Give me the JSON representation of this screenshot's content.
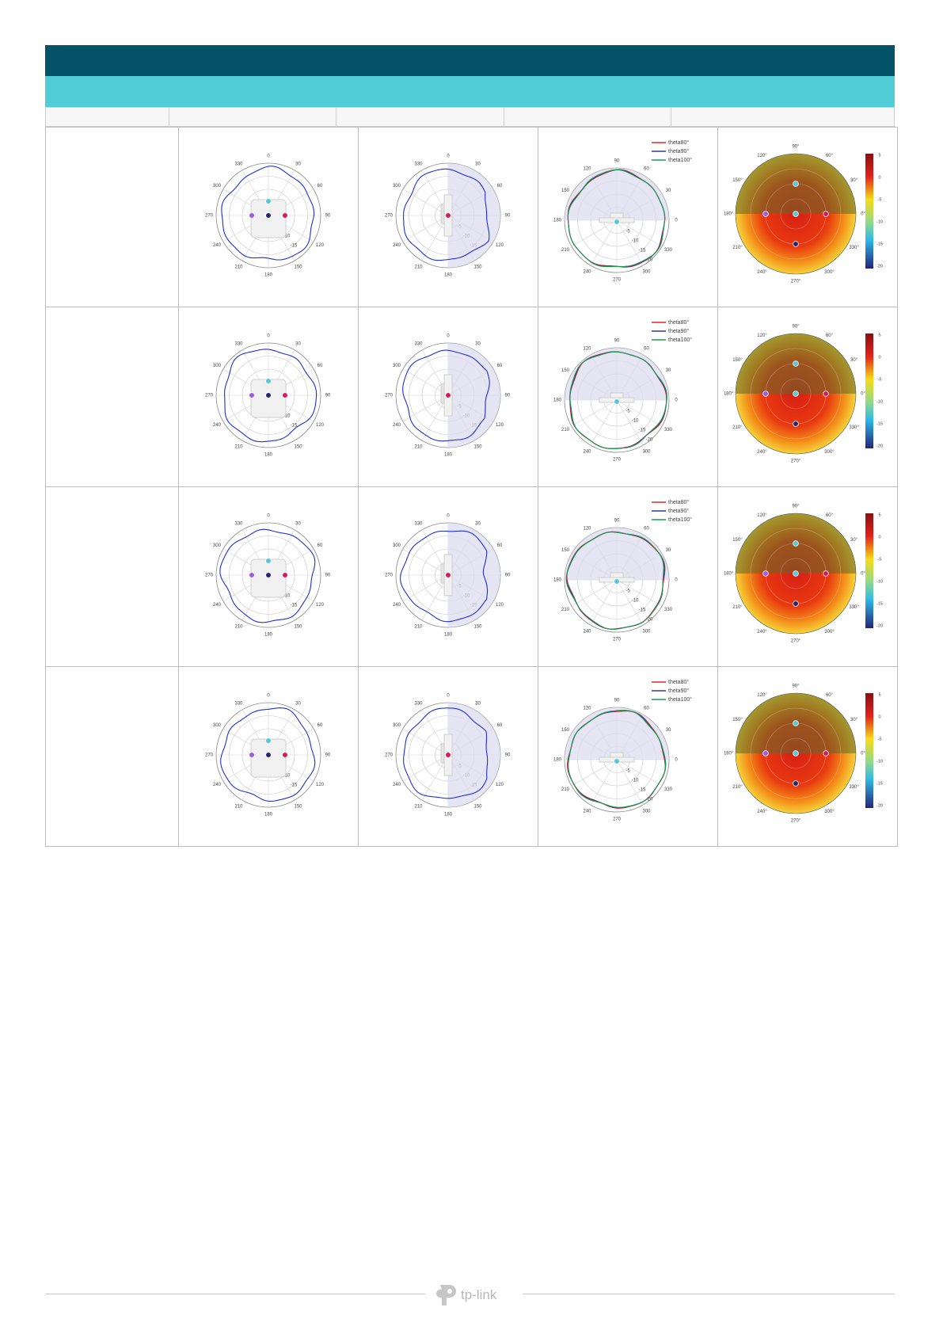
{
  "brand": {
    "logo_text": "tp-link"
  },
  "column_headers": [
    "",
    "",
    "",
    "",
    ""
  ],
  "rows": [
    {
      "azimuth": {
        "angle_labels": [
          "0",
          "30",
          "60",
          "90",
          "120",
          "150",
          "180",
          "210",
          "240",
          "270",
          "300",
          "330"
        ],
        "ring_labels": [
          "-5",
          "-10",
          "-15"
        ]
      },
      "elevation": {
        "angle_labels": [
          "0",
          "30",
          "60",
          "90",
          "120",
          "150",
          "180",
          "210",
          "240",
          "270",
          "300",
          "330"
        ],
        "ring_labels": [
          "-5",
          "-10",
          "-15"
        ]
      },
      "theta": {
        "angle_labels": [
          "90",
          "60",
          "30",
          "0",
          "330",
          "300",
          "270",
          "240",
          "210",
          "180",
          "150",
          "120"
        ],
        "ring_labels": [
          "-5",
          "-10",
          "-15",
          "-20"
        ],
        "legend": [
          "theta80°",
          "theta90°",
          "theta100°"
        ]
      },
      "heatmap": {
        "angle_labels": [
          "90°",
          "60°",
          "30°",
          "0°",
          "330°",
          "300°",
          "270°",
          "240°",
          "210°",
          "180°",
          "150°",
          "120°"
        ],
        "colorbar_ticks": [
          "5",
          "0",
          "-5",
          "-10",
          "-15",
          "-20"
        ]
      }
    },
    {
      "azimuth": {
        "angle_labels": [
          "0",
          "30",
          "60",
          "90",
          "120",
          "150",
          "180",
          "210",
          "240",
          "270",
          "300",
          "330"
        ],
        "ring_labels": [
          "-5",
          "-10",
          "-15"
        ]
      },
      "elevation": {
        "angle_labels": [
          "0",
          "30",
          "60",
          "90",
          "120",
          "150",
          "180",
          "210",
          "240",
          "270",
          "300",
          "330"
        ],
        "ring_labels": [
          "-5",
          "-10",
          "-15"
        ]
      },
      "theta": {
        "angle_labels": [
          "90",
          "60",
          "30",
          "0",
          "330",
          "300",
          "270",
          "240",
          "210",
          "180",
          "150",
          "120"
        ],
        "ring_labels": [
          "-5",
          "-10",
          "-15",
          "-20"
        ],
        "legend": [
          "theta80°",
          "theta90°",
          "theta100°"
        ]
      },
      "heatmap": {
        "angle_labels": [
          "90°",
          "60°",
          "30°",
          "0°",
          "330°",
          "300°",
          "270°",
          "240°",
          "210°",
          "180°",
          "150°",
          "120°"
        ],
        "colorbar_ticks": [
          "5",
          "0",
          "-5",
          "-10",
          "-15",
          "-20"
        ]
      }
    },
    {
      "azimuth": {
        "angle_labels": [
          "0",
          "30",
          "60",
          "90",
          "120",
          "150",
          "180",
          "210",
          "240",
          "270",
          "300",
          "330"
        ],
        "ring_labels": [
          "-5",
          "-10",
          "-15"
        ]
      },
      "elevation": {
        "angle_labels": [
          "0",
          "30",
          "60",
          "90",
          "120",
          "150",
          "180",
          "210",
          "240",
          "270",
          "300",
          "330"
        ],
        "ring_labels": [
          "-5",
          "-10",
          "-15"
        ]
      },
      "theta": {
        "angle_labels": [
          "90",
          "60",
          "30",
          "0",
          "330",
          "300",
          "270",
          "240",
          "210",
          "180",
          "150",
          "120"
        ],
        "ring_labels": [
          "-5",
          "-10",
          "-15",
          "-20"
        ],
        "legend": [
          "theta80°",
          "theta90°",
          "theta100°"
        ]
      },
      "heatmap": {
        "angle_labels": [
          "90°",
          "60°",
          "30°",
          "0°",
          "330°",
          "300°",
          "270°",
          "240°",
          "210°",
          "180°",
          "150°",
          "120°"
        ],
        "colorbar_ticks": [
          "5",
          "0",
          "-5",
          "-10",
          "-15",
          "-20"
        ]
      }
    },
    {
      "azimuth": {
        "angle_labels": [
          "0",
          "30",
          "60",
          "90",
          "120",
          "150",
          "180",
          "210",
          "240",
          "270",
          "300",
          "330"
        ],
        "ring_labels": [
          "-5",
          "-10",
          "-15"
        ]
      },
      "elevation": {
        "angle_labels": [
          "0",
          "30",
          "60",
          "90",
          "120",
          "150",
          "180",
          "210",
          "240",
          "270",
          "300",
          "330"
        ],
        "ring_labels": [
          "-5",
          "-10",
          "-15"
        ]
      },
      "theta": {
        "angle_labels": [
          "90",
          "60",
          "30",
          "0",
          "330",
          "300",
          "270",
          "240",
          "210",
          "180",
          "150",
          "120"
        ],
        "ring_labels": [
          "-5",
          "-10",
          "-15",
          "-20"
        ],
        "legend": [
          "theta80°",
          "theta90°",
          "theta100°"
        ]
      },
      "heatmap": {
        "angle_labels": [
          "90°",
          "60°",
          "30°",
          "0°",
          "330°",
          "300°",
          "270°",
          "240°",
          "210°",
          "180°",
          "150°",
          "120°"
        ],
        "colorbar_ticks": [
          "5",
          "0",
          "-5",
          "-10",
          "-15",
          "-20"
        ]
      }
    }
  ],
  "colors": {
    "header_dark": "#035268",
    "header_light": "#51cdd8",
    "pattern_line": "#1f2fd6",
    "theta80": "#e0262c",
    "theta90": "#2e3c9e",
    "theta100": "#1f9a4a",
    "marker_cyan": "#52c8d8",
    "marker_purple": "#9b5de5",
    "marker_navy": "#27246e",
    "marker_pink": "#d81b60"
  }
}
